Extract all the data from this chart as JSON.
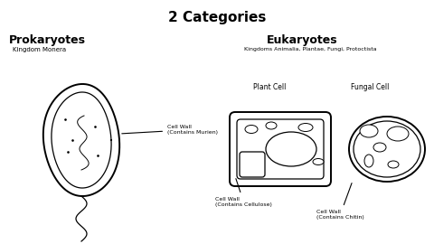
{
  "title": "2 Categories",
  "title_fontsize": 11,
  "background_color": "#ffffff",
  "prokaryotes_label": "Prokaryotes",
  "prokaryotes_sub": "Kingdom Monera",
  "eukaryotes_label": "Eukaryotes",
  "eukaryotes_sub": "Kingdoms Animalia, Plantae, Fungi, Protoctista",
  "plant_cell_label": "Plant Cell",
  "fungal_cell_label": "Fungal Cell"
}
